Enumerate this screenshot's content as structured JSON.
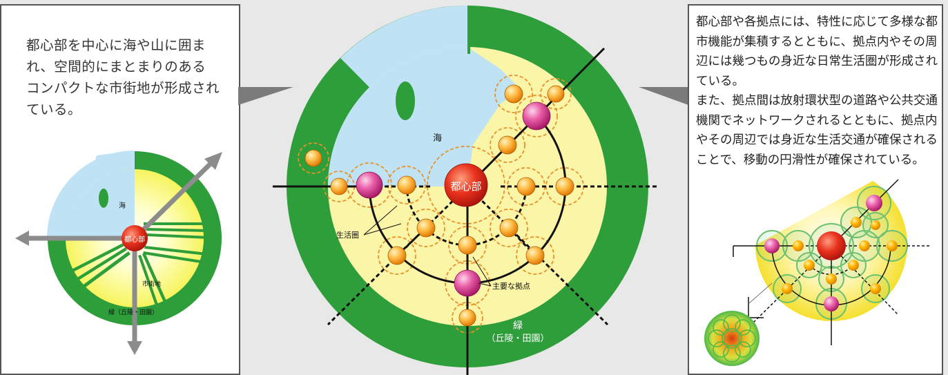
{
  "left_panel": {
    "description": "都心部を中心に海や山に囲まれ、空間的にまとまりのあるコンパクトな市街地が形成されている。",
    "diagram_labels": {
      "sea": "海",
      "center": "都心部",
      "urban_area": "市街地",
      "green": "緑（丘陵・田園）"
    }
  },
  "center_diagram": {
    "sea": "海",
    "center": "都心部",
    "life_sphere": "生活圏",
    "major_hub": "主要な拠点",
    "green_line1": "緑",
    "green_line2": "（丘陵・田園）"
  },
  "right_panel": {
    "paragraph1": "都心部や各拠点には、特性に応じて多様な都市機能が集積するとともに、拠点内やその周辺には幾つもの身近な日常生活圏が形成されている。",
    "paragraph2": "また、拠点間は放射環状型の道路や公共交通機関でネットワークされるとともに、拠点内やその周辺では身近な生活交通が確保されることで、移動の円滑性が確保されている。"
  },
  "colors": {
    "green": "#2e9e3a",
    "sea": "#bfe3f5",
    "urban": "#fbf5a8",
    "hub_orange": "#f5a623",
    "hub_pink": "#e0559f",
    "center_red": "#d9281e",
    "arrow_gray": "#8c8c8c"
  }
}
